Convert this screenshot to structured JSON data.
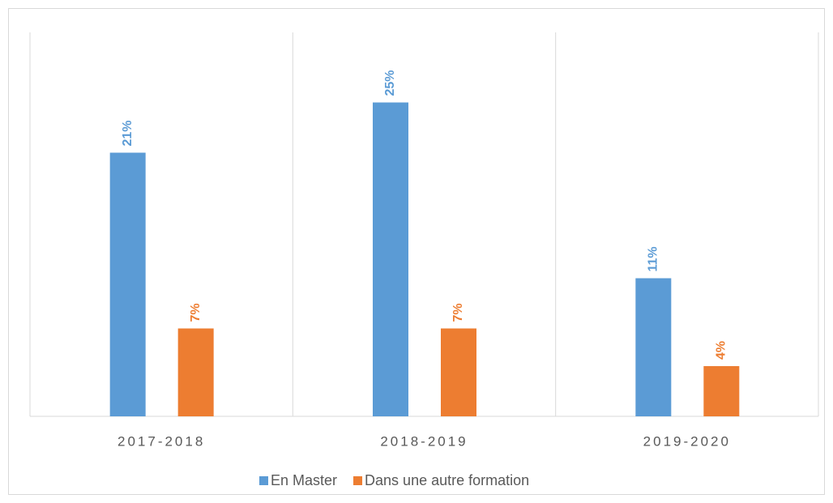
{
  "chart_data": {
    "type": "bar",
    "categories": [
      "2017-2018",
      "2018-2019",
      "2019-2020"
    ],
    "series": [
      {
        "name": "En Master",
        "color": "#5b9bd5",
        "values": [
          21,
          25,
          11
        ],
        "value_labels": [
          "21%",
          "25%",
          "11%"
        ]
      },
      {
        "name": "Dans une autre formation",
        "color": "#ed7d31",
        "values": [
          7,
          7,
          4
        ],
        "value_labels": [
          "7%",
          "7%",
          "4%"
        ]
      }
    ],
    "ylim": [
      0,
      30
    ],
    "legend": "bottom"
  }
}
